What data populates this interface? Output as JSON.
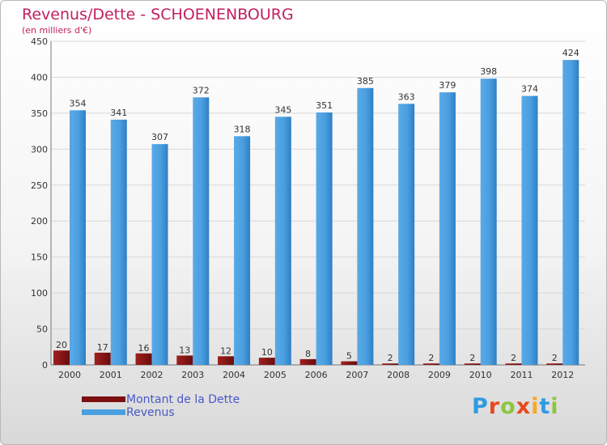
{
  "chart_data": {
    "type": "bar",
    "title": "Revenus/Dette - SCHOENENBOURG",
    "subtitle": "(en milliers d'€)",
    "xlabel": "",
    "ylabel": "",
    "ylim": [
      0,
      450
    ],
    "yticks": [
      0,
      50,
      100,
      150,
      200,
      250,
      300,
      350,
      400,
      450
    ],
    "grid": true,
    "legend_position": "bottom-left",
    "categories": [
      "2000",
      "2001",
      "2002",
      "2003",
      "2004",
      "2005",
      "2006",
      "2007",
      "2008",
      "2009",
      "2010",
      "2011",
      "2012"
    ],
    "series": [
      {
        "name": "Montant de la Dette",
        "color": "#7a1010",
        "values": [
          20,
          17,
          16,
          13,
          12,
          10,
          8,
          5,
          2,
          2,
          2,
          2,
          2
        ]
      },
      {
        "name": "Revenus",
        "color": "#4a9fe0",
        "values": [
          354,
          341,
          307,
          372,
          318,
          345,
          351,
          385,
          363,
          379,
          398,
          374,
          424
        ]
      }
    ]
  },
  "brand": {
    "text": "Proxiti",
    "colors": [
      "#2f9be0",
      "#e8491d",
      "#8cc63f",
      "#f7a823"
    ]
  }
}
